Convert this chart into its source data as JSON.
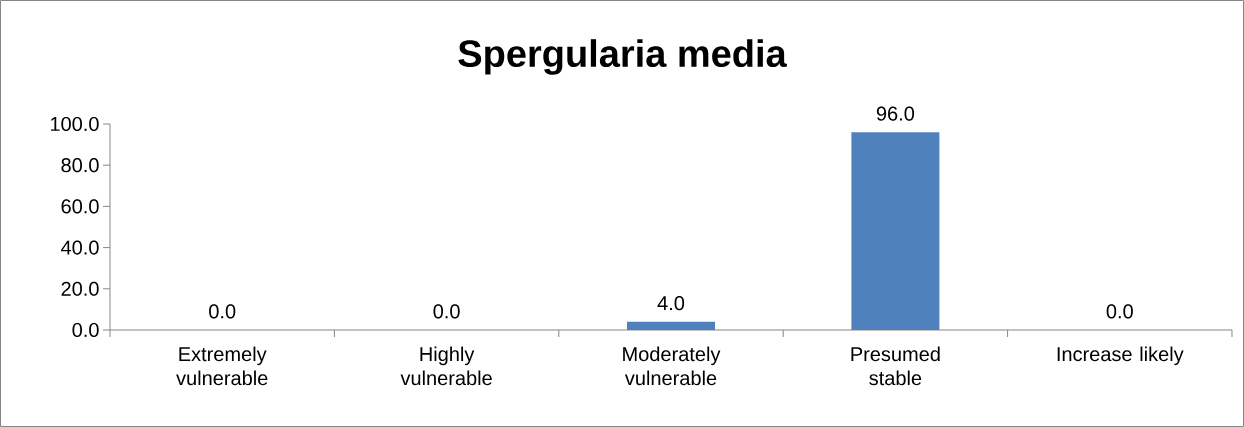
{
  "chart_data": {
    "type": "bar",
    "title": "Spergularia media",
    "categories": [
      "Extremely vulnerable",
      "Highly vulnerable",
      "Moderately vulnerable",
      "Presumed stable",
      "Increase likely"
    ],
    "values": [
      0,
      0,
      4,
      96,
      0
    ],
    "value_labels": [
      "0.0",
      "0.0",
      "4.0",
      "96.0",
      "0.0"
    ],
    "color": "#4f81bd",
    "ylim": [
      0,
      100
    ],
    "yticks": [
      {
        "value": 0,
        "label": "0.0"
      },
      {
        "value": 20,
        "label": "20.0"
      },
      {
        "value": 40,
        "label": "40.0"
      },
      {
        "value": 60,
        "label": "60.0"
      },
      {
        "value": 80,
        "label": "80.0"
      },
      {
        "value": 100,
        "label": "100.0"
      }
    ],
    "grid": false
  }
}
